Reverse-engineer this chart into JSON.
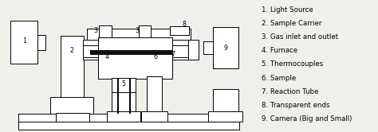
{
  "background_color": "#f0f0eb",
  "legend_items": [
    "1. Light Source",
    "2. Sample Carrier",
    "3. Gas inlet and outlet",
    "4. Furnace",
    "5. Thermocouples",
    "6. Sample",
    "7. Reaction Tube",
    "8. Transparent ends",
    "9. Camera (Big and Small)"
  ],
  "font_size": 6.2
}
